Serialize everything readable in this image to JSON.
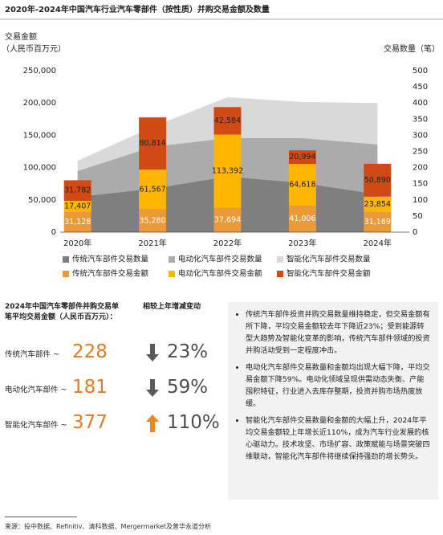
{
  "chart_data": {
    "type": "bar",
    "title": "2020年-2024年中国汽车行业汽车零部件（按性质）并购交易金额及数量",
    "y_label": [
      "交易金额",
      "（人民币百万元）"
    ],
    "y2_label": "交易数量（笔）",
    "categories": [
      "2020年",
      "2021年",
      "2022年",
      "2023年",
      "2024年"
    ],
    "ylim": [
      0,
      250000
    ],
    "yticks": [
      {
        "value": 0,
        "label": "0"
      },
      {
        "value": 50000,
        "label": "50,000"
      },
      {
        "value": 100000,
        "label": "100,000"
      },
      {
        "value": 150000,
        "label": "150,000"
      },
      {
        "value": 200000,
        "label": "200,000"
      },
      {
        "value": 250000,
        "label": "250,000"
      }
    ],
    "y2lim": [
      0,
      500
    ],
    "y2ticks": [
      0,
      50,
      100,
      150,
      200,
      250,
      300,
      350,
      400,
      450,
      500
    ],
    "stacked": true,
    "series": [
      {
        "name": "传统汽车部件交易数量",
        "color": "#7f7f7f",
        "axis": "y2",
        "mark": "area",
        "values": [
          109,
          134,
          172,
          152,
          117
        ]
      },
      {
        "name": "电动化汽车部件交易数量",
        "color": "#ababab",
        "axis": "y2",
        "mark": "area",
        "values": [
          80,
          130,
          119,
          139,
          154
        ]
      },
      {
        "name": "智能化汽车部件交易数量",
        "color": "#d9d9d9",
        "axis": "y2",
        "mark": "area",
        "values": [
          32,
          62,
          127,
          112,
          129
        ]
      },
      {
        "name": "传统汽车部件交易金额",
        "color": "#eb9a3a",
        "mark": "bar",
        "label_color": "#ffffff",
        "values": [
          31128,
          35280,
          37694,
          41006,
          31169
        ],
        "value_labels": [
          "31,128",
          "35,280",
          "37,694",
          "41,006",
          "31,169"
        ]
      },
      {
        "name": "电动化汽车部件交易金额",
        "color": "#ffb600",
        "mark": "bar",
        "label_color": "#222222",
        "values": [
          17407,
          61567,
          113392,
          64618,
          23854
        ],
        "value_labels": [
          "17,407",
          "61,567",
          "113,392",
          "64,618",
          "23,854"
        ]
      },
      {
        "name": "智能化汽车部件交易金额",
        "color": "#d04a14",
        "mark": "bar",
        "label_color": "#222222",
        "values": [
          31782,
          80814,
          42584,
          20994,
          50890
        ],
        "value_labels": [
          "31,782",
          "80,814",
          "42,584",
          "20,994",
          "50,890"
        ]
      }
    ]
  },
  "summary": {
    "avg_heading": "2024年中国汽车零部件并购交易单笔平均交易金额（人民币百万元）：",
    "change_heading": "相较上年增减变动",
    "rows": [
      {
        "label": "传统汽车部件 ~",
        "value": 228,
        "direction": "down",
        "change": "23%"
      },
      {
        "label": "电动化汽车部件 ~",
        "value": 181,
        "direction": "down",
        "change": "59%"
      },
      {
        "label": "智能化汽车部件 ~",
        "value": 377,
        "direction": "up",
        "change": "110%"
      }
    ],
    "notes": [
      "传统汽车部件投资并购交易数量维持稳定，但交易金额有所下降，平均交易金额较去年下降近23%；受到能源转型大趋势及智能化变革的影响，传统汽车部件领域的投资并购活动受到一定程度冲击。",
      "电动化汽车部件交易数量和金额均出现大幅下降，平均交易金额下降59%。电动化领域呈现供需动态失衡、产能囤积特征，行业进入去库存整期，投资并购市场热度放缓。",
      "智能化汽车部件交易数量和金额的大幅上升，2024年平均交易金额较上年增长近110%，成为汽车行业发展的核心驱动力。技术攻坚、市场扩容、政策赋能与场景突破四维联动，智能化汽车部件将继续保持强劲的增长势头。"
    ]
  },
  "source": "来源：投中数据、Refinitiv、清科数据、Mergermarket及普华永道分析"
}
